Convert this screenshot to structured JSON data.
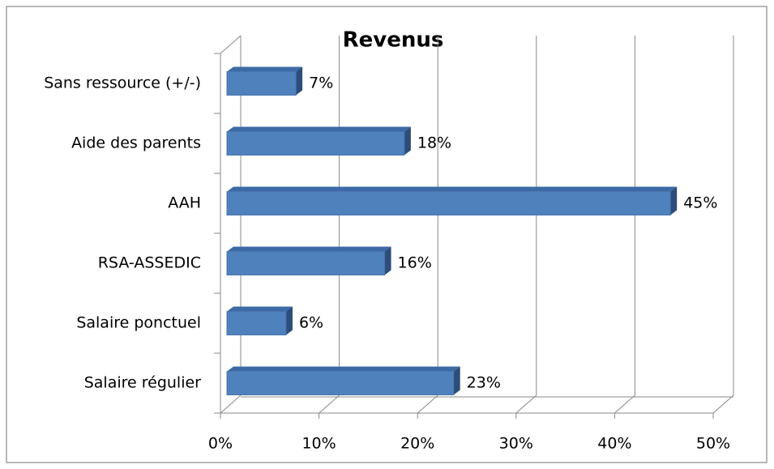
{
  "chart_data": {
    "type": "bar3d-horizontal",
    "title": "Revenus",
    "categories": [
      "Sans ressource (+/-)",
      "Aide des parents",
      "AAH",
      "RSA-ASSEDIC",
      "Salaire ponctuel",
      "Salaire régulier"
    ],
    "values": [
      7,
      18,
      45,
      16,
      6,
      23
    ],
    "value_labels": [
      "7%",
      "18%",
      "45%",
      "16%",
      "6%",
      "23%"
    ],
    "color": "#4f81bd",
    "xlim": [
      0,
      50
    ],
    "xticks": [
      {
        "value": 0,
        "label": "0%"
      },
      {
        "value": 10,
        "label": "10%"
      },
      {
        "value": 20,
        "label": "20%"
      },
      {
        "value": 30,
        "label": "30%"
      },
      {
        "value": 40,
        "label": "40%"
      },
      {
        "value": 50,
        "label": "50%"
      }
    ],
    "grid": true
  }
}
